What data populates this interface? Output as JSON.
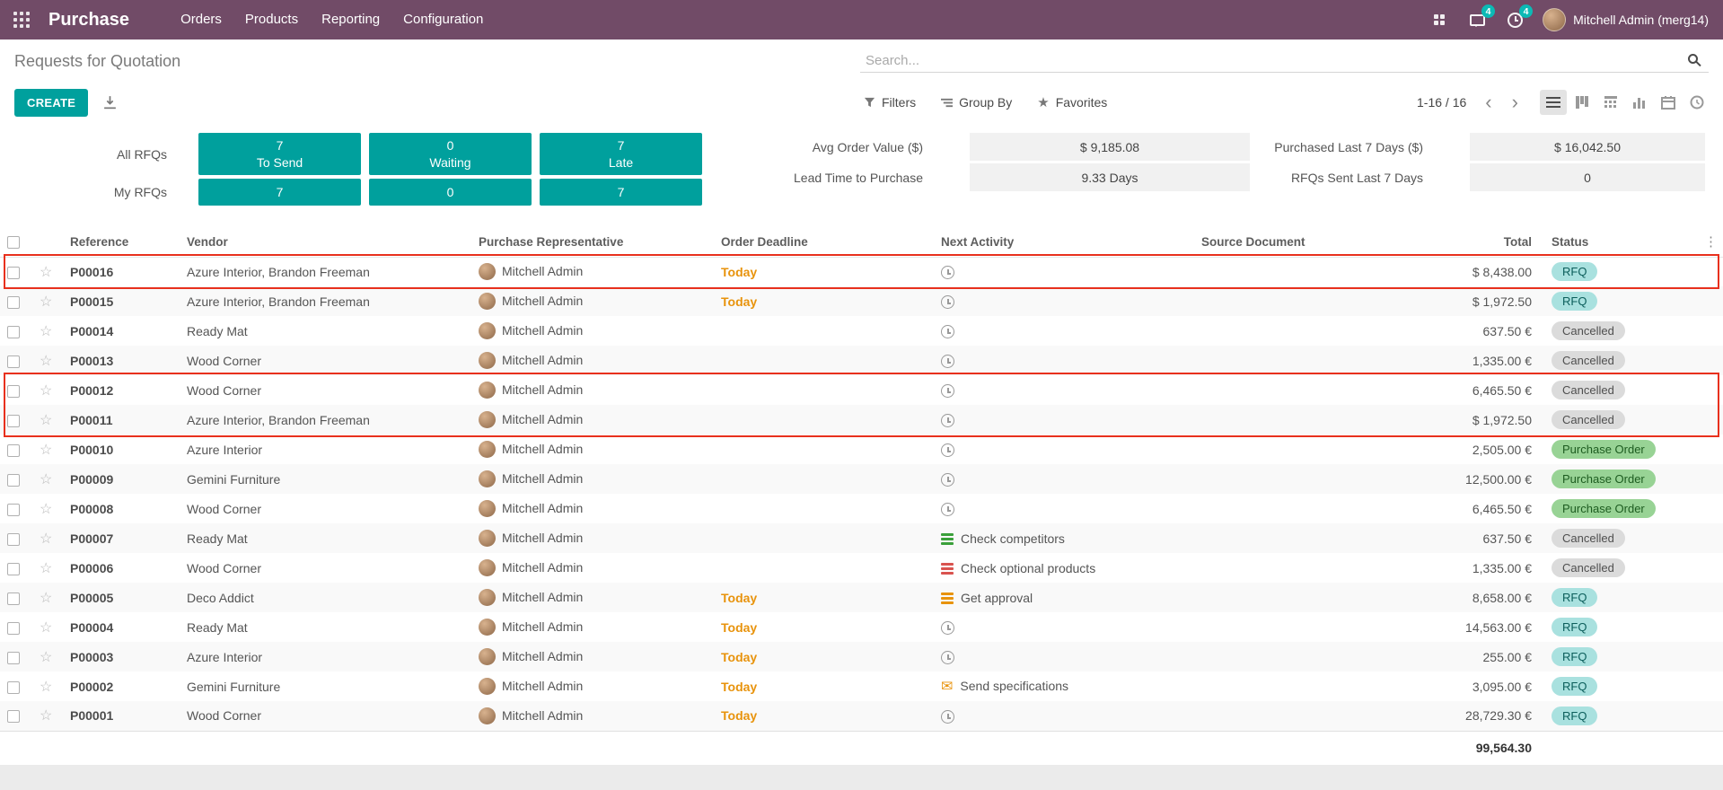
{
  "topbar": {
    "app_name": "Purchase",
    "menus": [
      "Orders",
      "Products",
      "Reporting",
      "Configuration"
    ],
    "messages_count": "4",
    "activities_count": "4",
    "user": "Mitchell Admin (merg14)"
  },
  "breadcrumb": "Requests for Quotation",
  "search": {
    "placeholder": "Search..."
  },
  "controls": {
    "create_label": "CREATE",
    "filters": "Filters",
    "group_by": "Group By",
    "favorites": "Favorites",
    "pager": "1-16 / 16",
    "view_switcher": [
      "list",
      "kanban",
      "pivot",
      "graph",
      "calendar",
      "activity"
    ]
  },
  "dashboard": {
    "all_rfqs_label": "All RFQs",
    "my_rfqs_label": "My RFQs",
    "buttons": [
      {
        "all": "7",
        "label": "To Send",
        "my": "7"
      },
      {
        "all": "0",
        "label": "Waiting",
        "my": "0"
      },
      {
        "all": "7",
        "label": "Late",
        "my": "7"
      }
    ],
    "stats": [
      {
        "label": "Avg Order Value ($)",
        "value": "$ 9,185.08"
      },
      {
        "label": "Lead Time to Purchase",
        "value": "9.33 Days"
      },
      {
        "label": "Purchased Last 7 Days ($)",
        "value": "$ 16,042.50"
      },
      {
        "label": "RFQs Sent Last 7 Days",
        "value": "0"
      }
    ]
  },
  "table": {
    "headers": [
      "Reference",
      "Vendor",
      "Purchase Representative",
      "Order Deadline",
      "Next Activity",
      "Source Document",
      "Total",
      "Status"
    ],
    "rows": [
      {
        "reference": "P00016",
        "vendor": "Azure Interior, Brandon Freeman",
        "representative": "Mitchell Admin",
        "deadline": "Today",
        "activity": {
          "icon": "clock",
          "color": "",
          "label": ""
        },
        "source": "",
        "total": "$ 8,438.00",
        "status": "RFQ",
        "status_type": "rfq"
      },
      {
        "reference": "P00015",
        "vendor": "Azure Interior, Brandon Freeman",
        "representative": "Mitchell Admin",
        "deadline": "Today",
        "activity": {
          "icon": "clock",
          "color": "",
          "label": ""
        },
        "source": "",
        "total": "$ 1,972.50",
        "status": "RFQ",
        "status_type": "rfq"
      },
      {
        "reference": "P00014",
        "vendor": "Ready Mat",
        "representative": "Mitchell Admin",
        "deadline": "",
        "activity": {
          "icon": "clock",
          "color": "",
          "label": ""
        },
        "source": "",
        "total": "637.50 €",
        "status": "Cancelled",
        "status_type": "cancelled"
      },
      {
        "reference": "P00013",
        "vendor": "Wood Corner",
        "representative": "Mitchell Admin",
        "deadline": "",
        "activity": {
          "icon": "clock",
          "color": "",
          "label": ""
        },
        "source": "",
        "total": "1,335.00 €",
        "status": "Cancelled",
        "status_type": "cancelled"
      },
      {
        "reference": "P00012",
        "vendor": "Wood Corner",
        "representative": "Mitchell Admin",
        "deadline": "",
        "activity": {
          "icon": "clock",
          "color": "",
          "label": ""
        },
        "source": "",
        "total": "6,465.50 €",
        "status": "Cancelled",
        "status_type": "cancelled"
      },
      {
        "reference": "P00011",
        "vendor": "Azure Interior, Brandon Freeman",
        "representative": "Mitchell Admin",
        "deadline": "",
        "activity": {
          "icon": "clock",
          "color": "",
          "label": ""
        },
        "source": "",
        "total": "$ 1,972.50",
        "status": "Cancelled",
        "status_type": "cancelled"
      },
      {
        "reference": "P00010",
        "vendor": "Azure Interior",
        "representative": "Mitchell Admin",
        "deadline": "",
        "activity": {
          "icon": "clock",
          "color": "",
          "label": ""
        },
        "source": "",
        "total": "2,505.00 €",
        "status": "Purchase Order",
        "status_type": "po"
      },
      {
        "reference": "P00009",
        "vendor": "Gemini Furniture",
        "representative": "Mitchell Admin",
        "deadline": "",
        "activity": {
          "icon": "clock",
          "color": "",
          "label": ""
        },
        "source": "",
        "total": "12,500.00 €",
        "status": "Purchase Order",
        "status_type": "po"
      },
      {
        "reference": "P00008",
        "vendor": "Wood Corner",
        "representative": "Mitchell Admin",
        "deadline": "",
        "activity": {
          "icon": "clock",
          "color": "",
          "label": ""
        },
        "source": "",
        "total": "6,465.50 €",
        "status": "Purchase Order",
        "status_type": "po"
      },
      {
        "reference": "P00007",
        "vendor": "Ready Mat",
        "representative": "Mitchell Admin",
        "deadline": "",
        "activity": {
          "icon": "bars",
          "color": "#3aa03a",
          "label": "Check competitors"
        },
        "source": "",
        "total": "637.50 €",
        "status": "Cancelled",
        "status_type": "cancelled"
      },
      {
        "reference": "P00006",
        "vendor": "Wood Corner",
        "representative": "Mitchell Admin",
        "deadline": "",
        "activity": {
          "icon": "bars",
          "color": "#d9534f",
          "label": "Check optional products"
        },
        "source": "",
        "total": "1,335.00 €",
        "status": "Cancelled",
        "status_type": "cancelled"
      },
      {
        "reference": "P00005",
        "vendor": "Deco Addict",
        "representative": "Mitchell Admin",
        "deadline": "Today",
        "activity": {
          "icon": "bars",
          "color": "#e8930c",
          "label": "Get approval"
        },
        "source": "",
        "total": "8,658.00 €",
        "status": "RFQ",
        "status_type": "rfq"
      },
      {
        "reference": "P00004",
        "vendor": "Ready Mat",
        "representative": "Mitchell Admin",
        "deadline": "Today",
        "activity": {
          "icon": "clock",
          "color": "",
          "label": ""
        },
        "source": "",
        "total": "14,563.00 €",
        "status": "RFQ",
        "status_type": "rfq"
      },
      {
        "reference": "P00003",
        "vendor": "Azure Interior",
        "representative": "Mitchell Admin",
        "deadline": "Today",
        "activity": {
          "icon": "clock",
          "color": "",
          "label": ""
        },
        "source": "",
        "total": "255.00 €",
        "status": "RFQ",
        "status_type": "rfq"
      },
      {
        "reference": "P00002",
        "vendor": "Gemini Furniture",
        "representative": "Mitchell Admin",
        "deadline": "Today",
        "activity": {
          "icon": "envelope",
          "color": "#e8930c",
          "label": "Send specifications"
        },
        "source": "",
        "total": "3,095.00 €",
        "status": "RFQ",
        "status_type": "rfq"
      },
      {
        "reference": "P00001",
        "vendor": "Wood Corner",
        "representative": "Mitchell Admin",
        "deadline": "Today",
        "activity": {
          "icon": "clock",
          "color": "",
          "label": ""
        },
        "source": "",
        "total": "28,729.30 €",
        "status": "RFQ",
        "status_type": "rfq"
      }
    ],
    "footer_total": "99,564.30"
  },
  "annotations": {
    "color": "#e8301d",
    "boxes": [
      {
        "rows": [
          0,
          0
        ]
      },
      {
        "rows": [
          4,
          5
        ]
      }
    ]
  },
  "colors": {
    "topbar_purple": "#714B67",
    "accent_teal": "#00A09D",
    "warning_orange": "#e8930c",
    "status_rfq_bg": "#a9e1df",
    "status_purchase_order_bg": "#98d395",
    "status_cancelled_bg": "#dbdbdb"
  }
}
